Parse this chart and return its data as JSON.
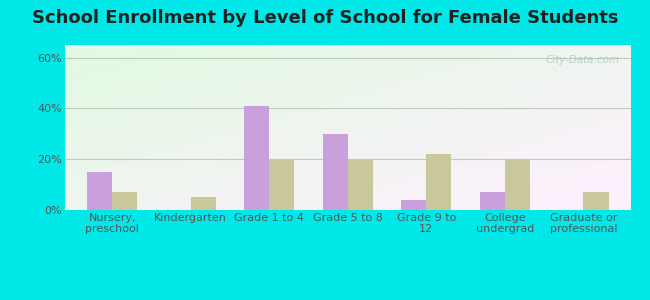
{
  "title": "School Enrollment by Level of School for Female Students",
  "categories": [
    "Nursery,\npreschool",
    "Kindergarten",
    "Grade 1 to 4",
    "Grade 5 to 8",
    "Grade 9 to\n12",
    "College\nundergrad",
    "Graduate or\nprofessional"
  ],
  "milroy": [
    15,
    0,
    41,
    30,
    4,
    7,
    0
  ],
  "minnesota": [
    7,
    5,
    20,
    20,
    22,
    20,
    7
  ],
  "milroy_color": "#c9a0dc",
  "minnesota_color": "#c8c89a",
  "bar_width": 0.32,
  "ylim": [
    0,
    65
  ],
  "yticks": [
    0,
    20,
    40,
    60
  ],
  "ytick_labels": [
    "0%",
    "20%",
    "40%",
    "60%"
  ],
  "background_outer": "#00e8e8",
  "grid_color": "#bbccbb",
  "title_fontsize": 13,
  "tick_fontsize": 8,
  "legend_fontsize": 10,
  "watermark_text": "City-Data.com",
  "watermark_color": "#b0c8c8",
  "legend_marker_milroy": "#c9a0dc",
  "legend_marker_minnesota": "#c8c89a"
}
